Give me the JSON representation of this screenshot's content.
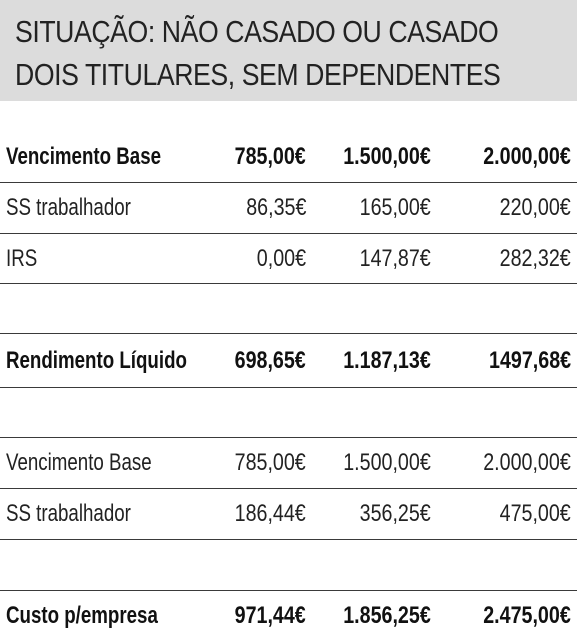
{
  "header": {
    "line1": "SITUAÇÃO: NÃO CASADO OU CASADO",
    "line2": "DOIS TITULARES, SEM DEPENDENTES",
    "background": "#dcdcdc"
  },
  "table": {
    "rows": [
      {
        "label": "Vencimento Base",
        "v1": "785,00€",
        "v2": "1.500,00€",
        "v3": "2.000,00€",
        "bold": true
      },
      {
        "label": "SS trabalhador",
        "v1": "86,35€",
        "v2": "165,00€",
        "v3": "220,00€",
        "bold": false
      },
      {
        "label": "IRS",
        "v1": "0,00€",
        "v2": "147,87€",
        "v3": "282,32€",
        "bold": false
      },
      {
        "label": "Rendimento Líquido",
        "v1": "698,65€",
        "v2": "1.187,13€",
        "v3": "1497,68€",
        "bold": true
      },
      {
        "label": "Vencimento Base",
        "v1": "785,00€",
        "v2": "1.500,00€",
        "v3": "2.000,00€",
        "bold": false
      },
      {
        "label": "SS trabalhador",
        "v1": "186,44€",
        "v2": "356,25€",
        "v3": "475,00€",
        "bold": false
      },
      {
        "label": "Custo p/empresa",
        "v1": "971,44€",
        "v2": "1.856,25€",
        "v3": "2.475,00€",
        "bold": true
      }
    ]
  }
}
